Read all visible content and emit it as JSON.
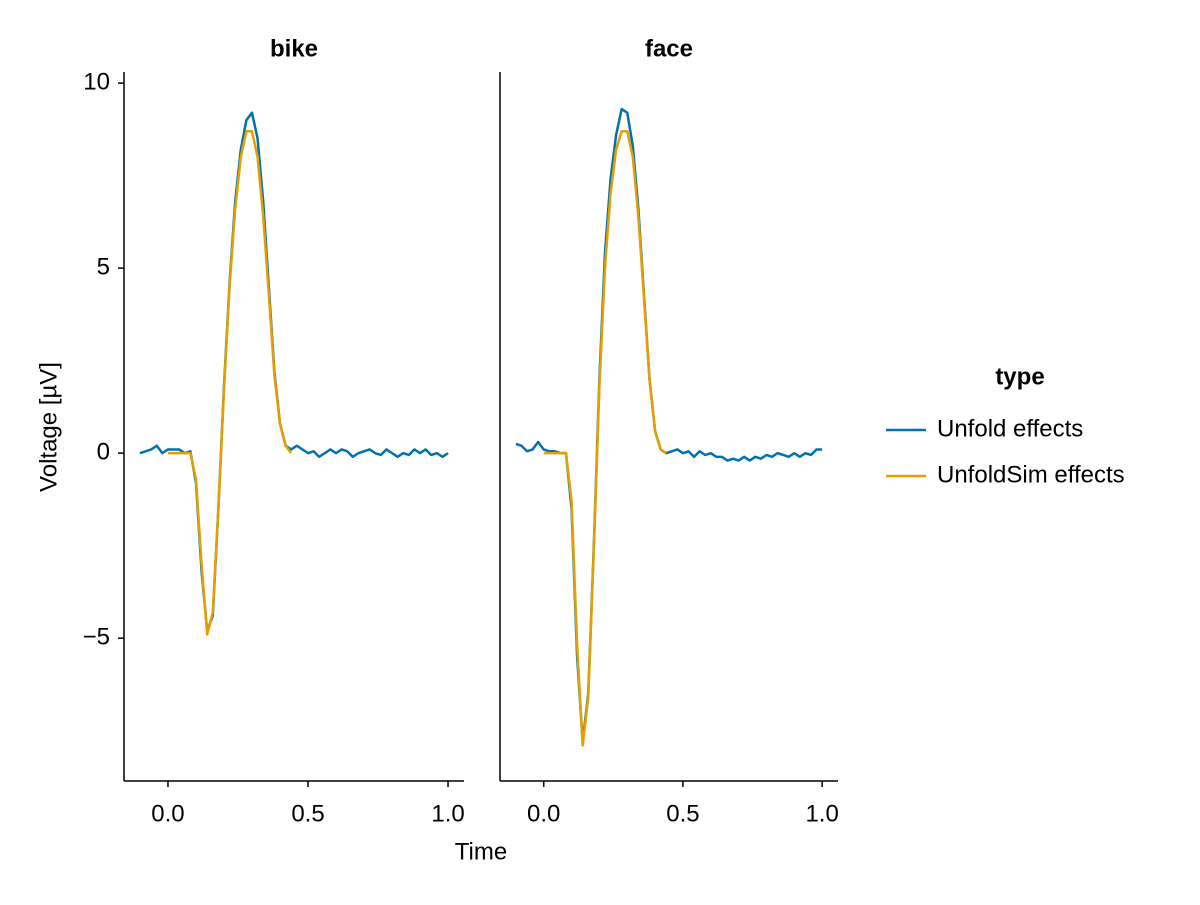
{
  "chart_data": [
    {
      "type": "line",
      "title": "bike",
      "x": [
        -0.1,
        -0.08,
        -0.06,
        -0.04,
        -0.02,
        0,
        0.02,
        0.04,
        0.06,
        0.08,
        0.1,
        0.12,
        0.14,
        0.16,
        0.18,
        0.2,
        0.22,
        0.24,
        0.26,
        0.28,
        0.3,
        0.32,
        0.34,
        0.36,
        0.38,
        0.4,
        0.42,
        0.44,
        0.46,
        0.48,
        0.5,
        0.52,
        0.54,
        0.56,
        0.58,
        0.6,
        0.62,
        0.64,
        0.66,
        0.68,
        0.7,
        0.72,
        0.74,
        0.76,
        0.78,
        0.8,
        0.82,
        0.84,
        0.86,
        0.88,
        0.9,
        0.92,
        0.94,
        0.96,
        0.98,
        1.0
      ],
      "series": [
        {
          "name": "Unfold effects",
          "color": "#0072b2",
          "values": [
            0,
            0.05,
            0.1,
            0.2,
            0,
            0.1,
            0.1,
            0.1,
            0,
            0.05,
            -0.8,
            -3.2,
            -4.8,
            -4.4,
            -1.5,
            1.8,
            4.6,
            6.8,
            8.2,
            9.0,
            9.2,
            8.5,
            6.8,
            4.5,
            2.2,
            0.8,
            0.2,
            0.1,
            0.2,
            0.1,
            0,
            0.05,
            -0.1,
            0,
            0.1,
            0,
            0.1,
            0.05,
            -0.1,
            0,
            0.05,
            0.1,
            0,
            -0.05,
            0.1,
            0,
            -0.1,
            0,
            -0.05,
            0.1,
            0,
            0.1,
            -0.05,
            0,
            -0.1,
            0
          ]
        },
        {
          "name": "UnfoldSim effects",
          "color": "#e69f00",
          "values": [
            null,
            null,
            null,
            null,
            null,
            0,
            0,
            0,
            0,
            0,
            -0.7,
            -3.0,
            -4.9,
            -4.3,
            -1.5,
            1.7,
            4.5,
            6.6,
            8.0,
            8.7,
            8.7,
            8.0,
            6.4,
            4.3,
            2.1,
            0.8,
            0.2,
            0,
            null,
            null,
            null,
            null,
            null,
            null,
            null,
            null,
            null,
            null,
            null,
            null,
            null,
            null,
            null,
            null,
            null,
            null,
            null,
            null,
            null,
            null,
            null,
            null,
            null,
            null,
            null,
            null
          ]
        }
      ],
      "xlim": [
        -0.157,
        1.057
      ],
      "ylim": [
        -8.86,
        10.3
      ],
      "xticks": [
        {
          "value": 0,
          "label": "0.0"
        },
        0.5,
        {
          "value": 1,
          "label": "1.0"
        }
      ],
      "yticks": [
        {
          "value": -5,
          "label": "−5"
        },
        0,
        5,
        10
      ]
    },
    {
      "type": "line",
      "title": "face",
      "x": [
        -0.1,
        -0.08,
        -0.06,
        -0.04,
        -0.02,
        0,
        0.02,
        0.04,
        0.06,
        0.08,
        0.1,
        0.12,
        0.14,
        0.16,
        0.18,
        0.2,
        0.22,
        0.24,
        0.26,
        0.28,
        0.3,
        0.32,
        0.34,
        0.36,
        0.38,
        0.4,
        0.42,
        0.44,
        0.46,
        0.48,
        0.5,
        0.52,
        0.54,
        0.56,
        0.58,
        0.6,
        0.62,
        0.64,
        0.66,
        0.68,
        0.7,
        0.72,
        0.74,
        0.76,
        0.78,
        0.8,
        0.82,
        0.84,
        0.86,
        0.88,
        0.9,
        0.92,
        0.94,
        0.96,
        0.98,
        1.0
      ],
      "series": [
        {
          "name": "Unfold effects",
          "color": "#0072b2",
          "values": [
            0.25,
            0.2,
            0.05,
            0.1,
            0.3,
            0.1,
            0.05,
            0.05,
            0,
            0,
            -1.5,
            -5.5,
            -7.8,
            -6.5,
            -2.5,
            2,
            5.4,
            7.4,
            8.6,
            9.3,
            9.2,
            8.3,
            6.6,
            4.3,
            2.0,
            0.6,
            0.1,
            0,
            0.05,
            0.1,
            0,
            0.05,
            -0.1,
            0.05,
            -0.05,
            0,
            -0.1,
            -0.1,
            -0.2,
            -0.15,
            -0.2,
            -0.1,
            -0.2,
            -0.1,
            -0.15,
            -0.05,
            -0.1,
            0,
            -0.05,
            -0.1,
            0,
            -0.1,
            0,
            -0.05,
            0.1,
            0.1
          ]
        },
        {
          "name": "UnfoldSim effects",
          "color": "#e69f00",
          "values": [
            null,
            null,
            null,
            null,
            null,
            0,
            0,
            0,
            0,
            0,
            -1.3,
            -5.2,
            -7.9,
            -6.6,
            -2.6,
            1.8,
            5.0,
            7.0,
            8.2,
            8.7,
            8.7,
            8.0,
            6.4,
            4.2,
            2.0,
            0.6,
            0.1,
            0,
            null,
            null,
            null,
            null,
            null,
            null,
            null,
            null,
            null,
            null,
            null,
            null,
            null,
            null,
            null,
            null,
            null,
            null,
            null,
            null,
            null,
            null,
            null,
            null,
            null,
            null,
            null,
            null
          ]
        }
      ],
      "xlim": [
        -0.157,
        1.057
      ],
      "ylim": [
        -8.86,
        10.3
      ],
      "xticks": [
        {
          "value": 0,
          "label": "0.0"
        },
        0.5,
        {
          "value": 1,
          "label": "1.0"
        }
      ]
    }
  ],
  "x_label": "Time",
  "y_label": "Voltage [µV]",
  "legend_title": "type"
}
